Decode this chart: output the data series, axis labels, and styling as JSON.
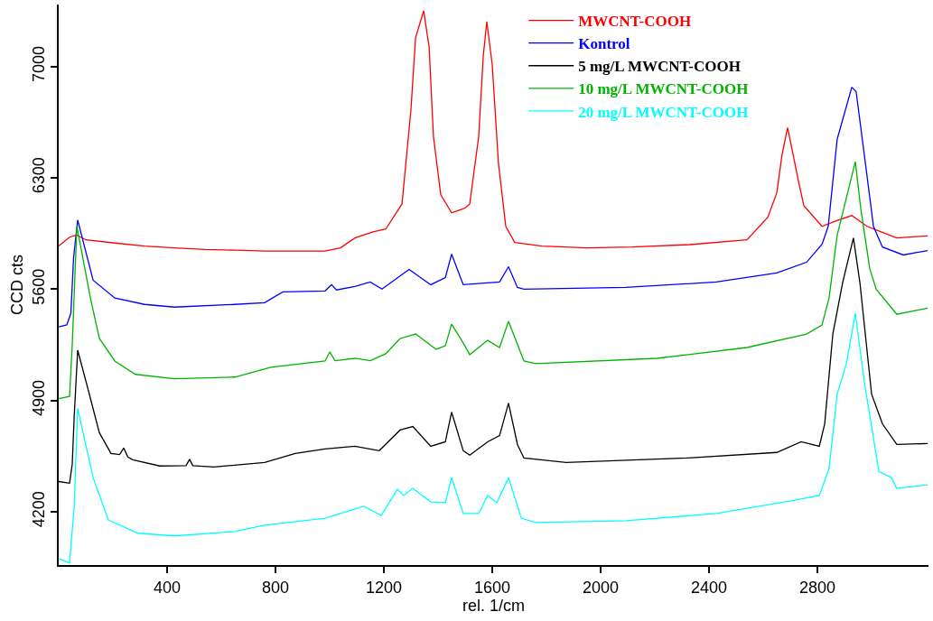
{
  "chart_data": {
    "type": "line",
    "xlabel": "rel. 1/cm",
    "ylabel": "CCD cts",
    "xlim": [
      0,
      3210
    ],
    "xticks": [
      400,
      800,
      1200,
      1600,
      2000,
      2400,
      2800
    ],
    "ylim": [
      3865,
      7390
    ],
    "yticks": [
      4200,
      4900,
      5600,
      6300,
      7000
    ],
    "legend": "top right",
    "marker": "none",
    "line_style": "solid",
    "series": [
      {
        "name": "MWCNT-COOH",
        "color": "#ff0000",
        "x": [
          0,
          40,
          67,
          100,
          207,
          317,
          427,
          540,
          650,
          760,
          880,
          983,
          1040,
          1093,
          1160,
          1207,
          1267,
          1300,
          1317,
          1347,
          1367,
          1383,
          1410,
          1450,
          1500,
          1517,
          1550,
          1567,
          1580,
          1600,
          1623,
          1650,
          1683,
          1783,
          1950,
          2117,
          2330,
          2540,
          2617,
          2650,
          2670,
          2690,
          2710,
          2730,
          2750,
          2817,
          2870,
          2927,
          2983,
          3093,
          3207
        ],
        "values": [
          5871,
          5927,
          5940,
          5910,
          5890,
          5871,
          5860,
          5850,
          5845,
          5840,
          5840,
          5840,
          5860,
          5922,
          5960,
          5978,
          6136,
          6729,
          7181,
          7350,
          7124,
          6560,
          6193,
          6080,
          6110,
          6136,
          6560,
          7068,
          7282,
          7011,
          6390,
          5995,
          5894,
          5871,
          5860,
          5865,
          5880,
          5910,
          6052,
          6204,
          6450,
          6616,
          6450,
          6280,
          6125,
          5995,
          6030,
          6063,
          5995,
          5922,
          5935
        ]
      },
      {
        "name": "Kontrol",
        "color": "#0000ff",
        "x": [
          0,
          30,
          45,
          55,
          70,
          127,
          207,
          317,
          427,
          650,
          760,
          827,
          983,
          1007,
          1025,
          1093,
          1150,
          1193,
          1293,
          1373,
          1427,
          1450,
          1493,
          1627,
          1660,
          1693,
          1717,
          2093,
          2427,
          2650,
          2760,
          2817,
          2840,
          2873,
          2927,
          2943,
          2973,
          3007,
          3040,
          3117,
          3207
        ],
        "values": [
          5363,
          5375,
          5450,
          5800,
          6035,
          5656,
          5544,
          5504,
          5487,
          5504,
          5515,
          5583,
          5589,
          5628,
          5595,
          5617,
          5645,
          5600,
          5724,
          5628,
          5673,
          5820,
          5628,
          5645,
          5741,
          5611,
          5600,
          5611,
          5645,
          5702,
          5769,
          5882,
          5995,
          6543,
          6870,
          6842,
          6447,
          5995,
          5865,
          5815,
          5843
        ]
      },
      {
        "name": "5 mg/L MWCNT-COOH",
        "color": "#000000",
        "x": [
          0,
          40,
          50,
          57,
          70,
          107,
          150,
          193,
          225,
          240,
          255,
          273,
          373,
          470,
          483,
          495,
          573,
          760,
          873,
          983,
          1093,
          1183,
          1260,
          1307,
          1373,
          1427,
          1450,
          1493,
          1517,
          1583,
          1627,
          1660,
          1693,
          1717,
          1873,
          2317,
          2650,
          2740,
          2807,
          2827,
          2857,
          2893,
          2933,
          2957,
          3000,
          3040,
          3093,
          3207
        ],
        "values": [
          4390,
          4380,
          4500,
          4793,
          5216,
          4979,
          4697,
          4567,
          4560,
          4601,
          4545,
          4527,
          4488,
          4490,
          4530,
          4490,
          4482,
          4510,
          4567,
          4595,
          4612,
          4584,
          4714,
          4736,
          4612,
          4640,
          4827,
          4584,
          4556,
          4640,
          4679,
          4883,
          4623,
          4538,
          4510,
          4538,
          4573,
          4640,
          4612,
          4753,
          5318,
          5640,
          5922,
          5640,
          4940,
          4753,
          4623,
          4629
        ]
      },
      {
        "name": "10 mg/L MWCNT-COOH",
        "color": "#00b400",
        "x": [
          0,
          40,
          50,
          67,
          117,
          150,
          207,
          283,
          427,
          650,
          783,
          983,
          1000,
          1020,
          1093,
          1150,
          1207,
          1260,
          1317,
          1393,
          1427,
          1450,
          1493,
          1517,
          1583,
          1627,
          1660,
          1717,
          1760,
          2207,
          2540,
          2760,
          2817,
          2843,
          2873,
          2940,
          2960,
          2993,
          3017,
          3093,
          3207
        ],
        "values": [
          4911,
          4925,
          5250,
          5995,
          5544,
          5290,
          5148,
          5064,
          5036,
          5047,
          5109,
          5148,
          5205,
          5150,
          5165,
          5150,
          5194,
          5290,
          5318,
          5222,
          5244,
          5380,
          5261,
          5188,
          5278,
          5233,
          5397,
          5148,
          5131,
          5165,
          5233,
          5318,
          5374,
          5544,
          5939,
          6402,
          6108,
          5730,
          5600,
          5442,
          5481
        ]
      },
      {
        "name": "20 mg/L MWCNT-COOH",
        "color": "#00ffff",
        "x": [
          0,
          40,
          57,
          70,
          127,
          183,
          293,
          427,
          650,
          760,
          983,
          1093,
          1127,
          1190,
          1250,
          1273,
          1307,
          1373,
          1427,
          1450,
          1493,
          1550,
          1583,
          1617,
          1660,
          1707,
          1760,
          2093,
          2427,
          2717,
          2807,
          2843,
          2873,
          2907,
          2940,
          2973,
          3027,
          3073,
          3093,
          3207
        ],
        "values": [
          3906,
          3878,
          4228,
          4849,
          4415,
          4149,
          4065,
          4048,
          4076,
          4115,
          4160,
          4217,
          4234,
          4177,
          4341,
          4302,
          4347,
          4262,
          4257,
          4415,
          4189,
          4189,
          4302,
          4257,
          4415,
          4160,
          4132,
          4144,
          4189,
          4273,
          4302,
          4471,
          4940,
          5131,
          5448,
          5019,
          4454,
          4415,
          4347,
          4370
        ]
      }
    ]
  }
}
